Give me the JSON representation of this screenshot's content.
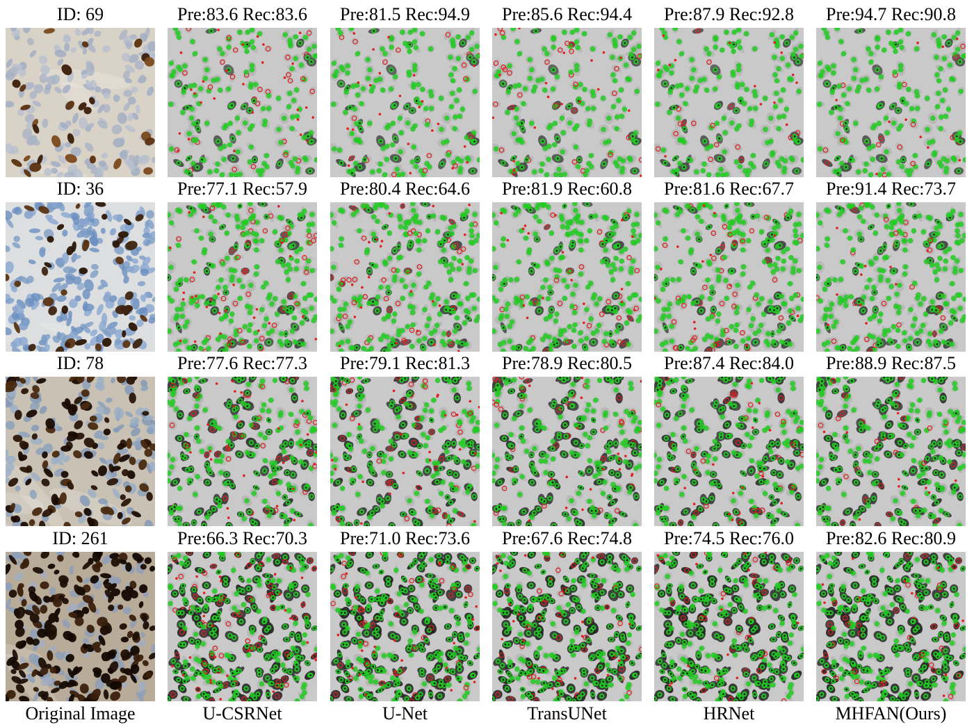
{
  "columns": [
    {
      "label": "Original Image"
    },
    {
      "label": "U-CSRNet"
    },
    {
      "label": "U-Net"
    },
    {
      "label": "TransUNet"
    },
    {
      "label": "HRNet"
    },
    {
      "label": "MHFAN(Ours)"
    }
  ],
  "rows": [
    {
      "id_label": "ID: 69",
      "stain": "light",
      "metrics": [
        "Pre:83.6 Rec:83.6",
        "Pre:81.5 Rec:94.9",
        "Pre:85.6 Rec:94.4",
        "Pre:87.9 Rec:92.8",
        "Pre:94.7 Rec:90.8"
      ]
    },
    {
      "id_label": "ID: 36",
      "stain": "blue",
      "metrics": [
        "Pre:77.1 Rec:57.9",
        "Pre:80.4 Rec:64.6",
        "Pre:81.9 Rec:60.8",
        "Pre:81.6 Rec:67.7",
        "Pre:91.4 Rec:73.7"
      ]
    },
    {
      "id_label": "ID: 78",
      "stain": "mixed",
      "metrics": [
        "Pre:77.6 Rec:77.3",
        "Pre:79.1 Rec:81.3",
        "Pre:78.9 Rec:80.5",
        "Pre:87.4 Rec:84.0",
        "Pre:88.9 Rec:87.5"
      ]
    },
    {
      "id_label": "ID: 261",
      "stain": "dense",
      "metrics": [
        "Pre:66.3 Rec:70.3",
        "Pre:71.0 Rec:73.6",
        "Pre:67.6 Rec:74.8",
        "Pre:74.5 Rec:76.0",
        "Pre:82.6 Rec:80.9"
      ]
    }
  ],
  "colors": {
    "true_positive": "#22cc22",
    "false_marker": "#e02020",
    "overlay_bg": "#c9c9c9",
    "overlay_dark": "#111111"
  }
}
